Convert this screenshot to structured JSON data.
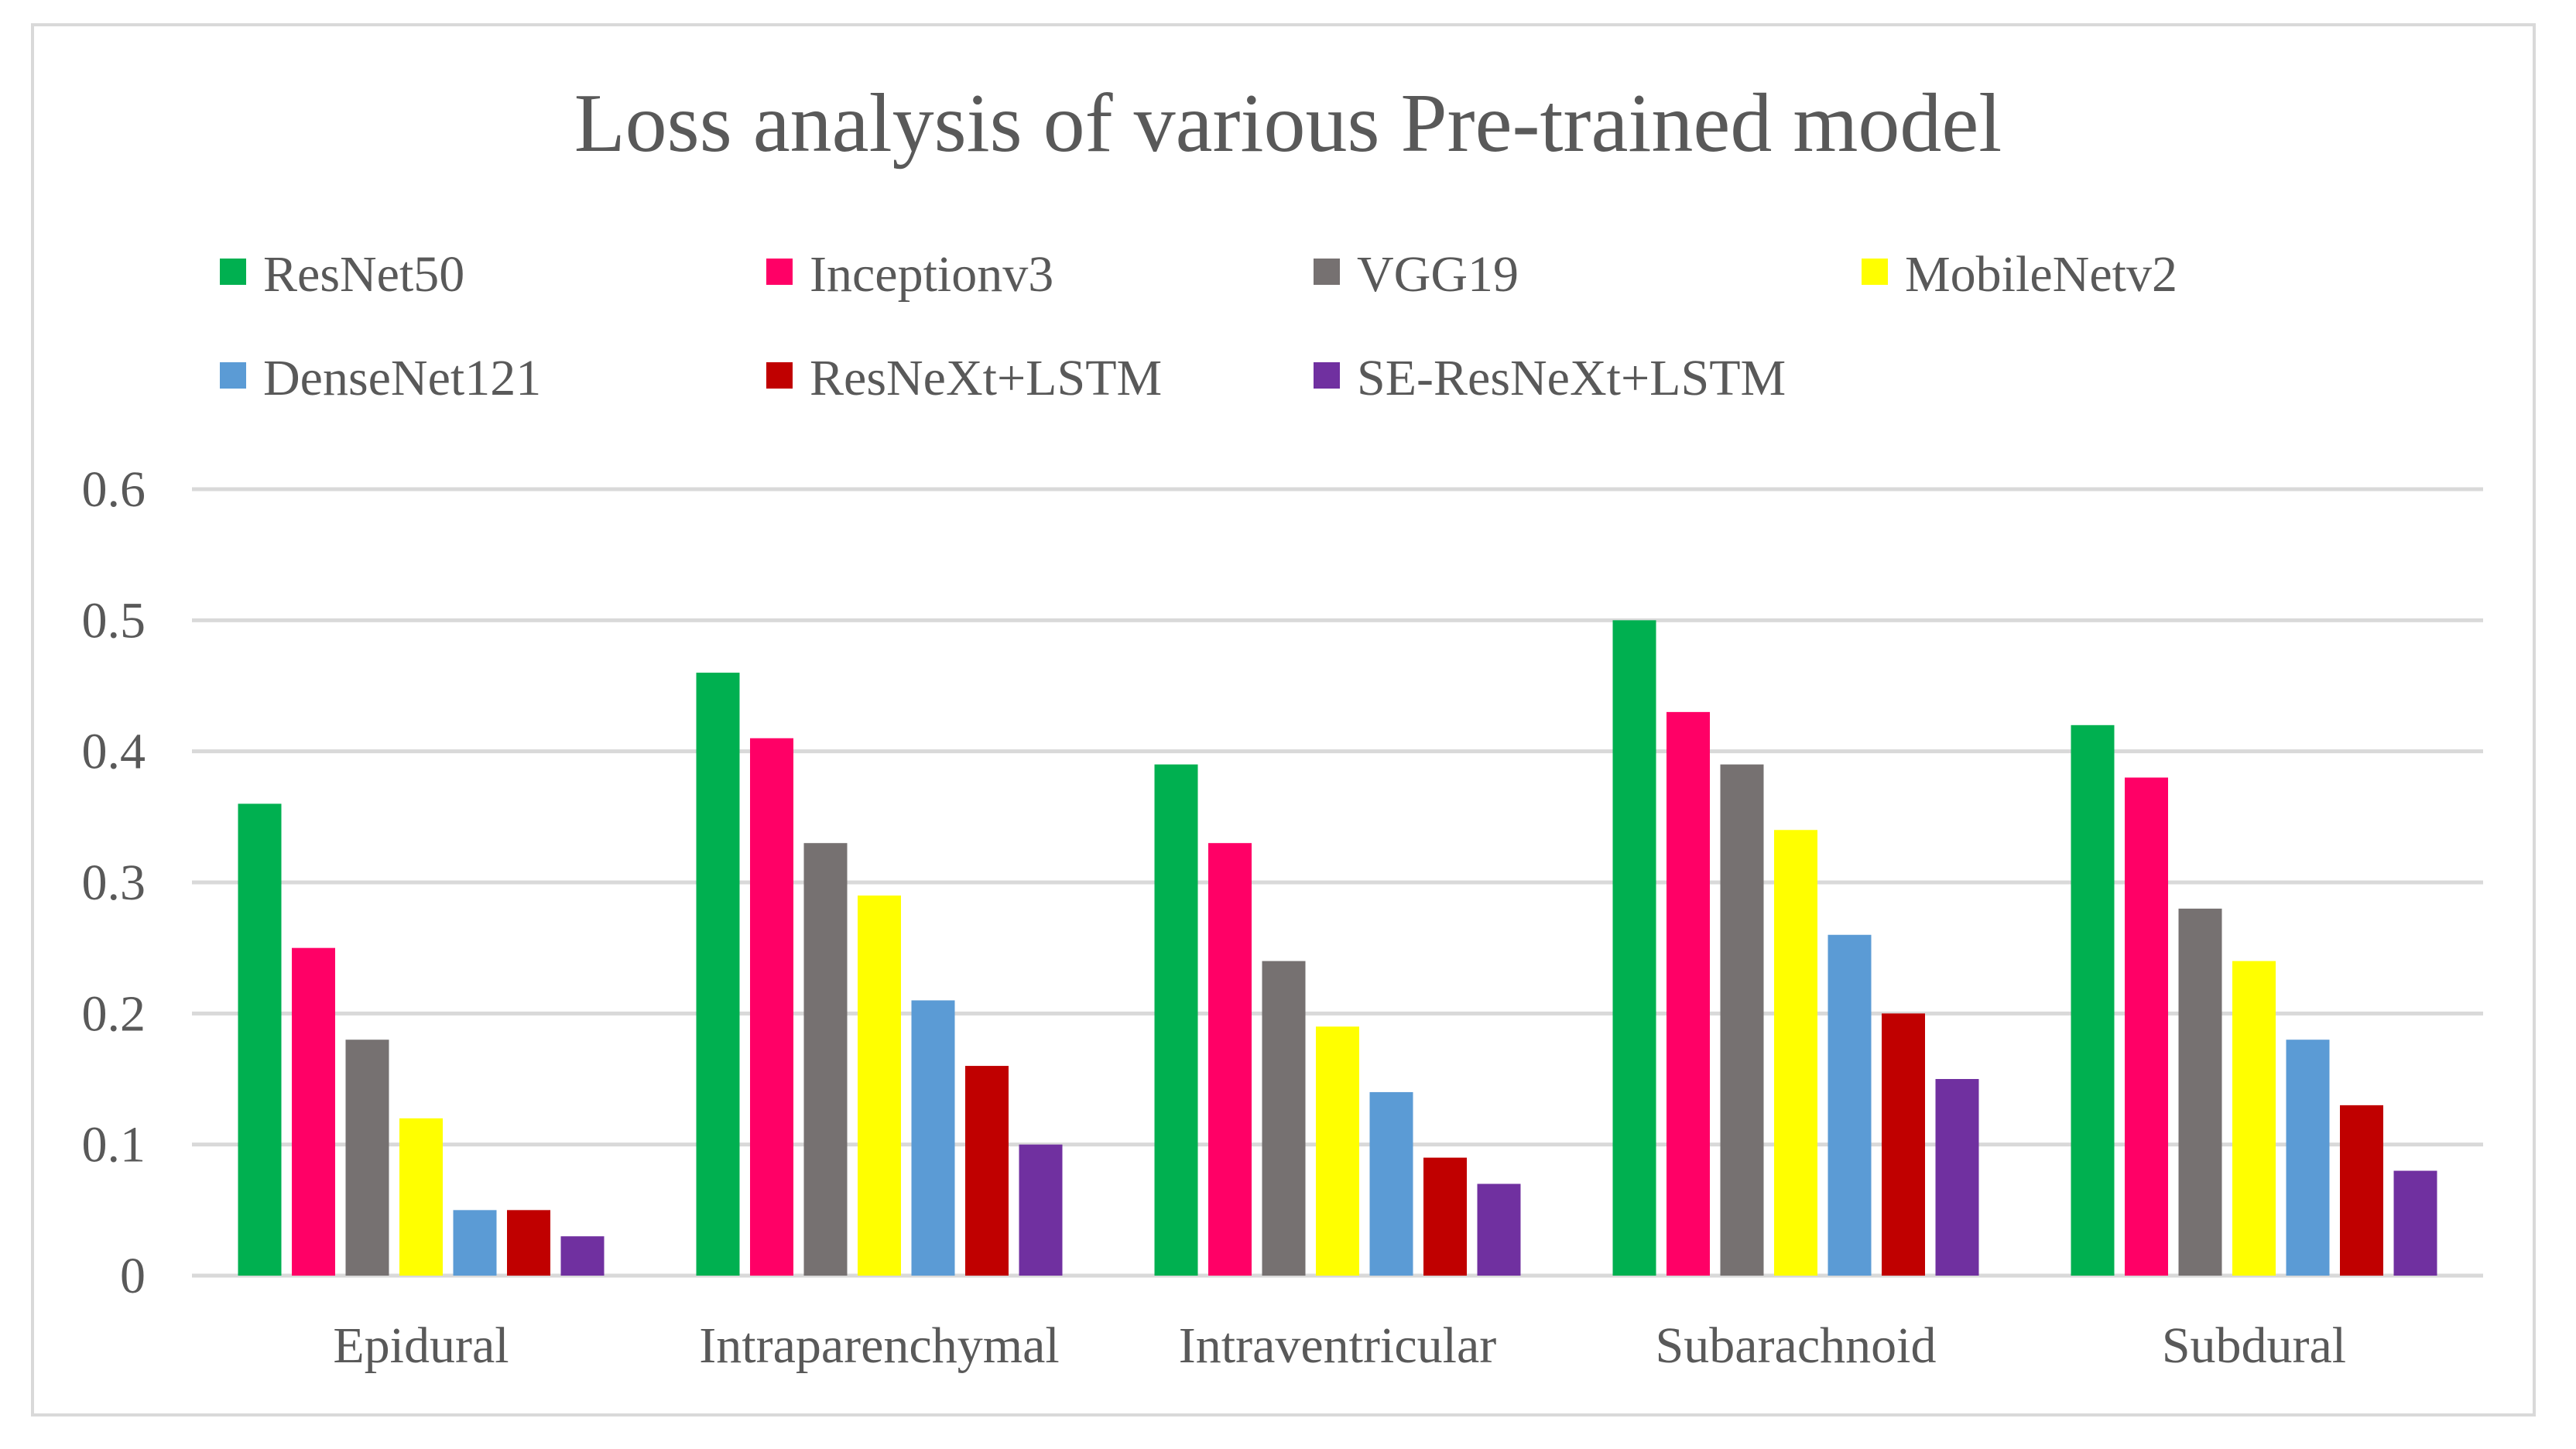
{
  "chart_data": {
    "type": "bar",
    "title": "Loss analysis of various Pre-trained model",
    "xlabel": "",
    "ylabel": "",
    "ylim": [
      0,
      0.6
    ],
    "yticks": [
      "0",
      "0.1",
      "0.2",
      "0.3",
      "0.4",
      "0.5",
      "0.6"
    ],
    "grid": true,
    "legend_position": "top",
    "categories": [
      "Epidural",
      "Intraparenchymal",
      "Intraventricular",
      "Subarachnoid",
      "Subdural"
    ],
    "series": [
      {
        "name": "ResNet50",
        "color": "#00b050",
        "values": [
          0.36,
          0.46,
          0.39,
          0.5,
          0.42
        ]
      },
      {
        "name": "Inceptionv3",
        "color": "#ff0066",
        "values": [
          0.25,
          0.41,
          0.33,
          0.43,
          0.38
        ]
      },
      {
        "name": "VGG19",
        "color": "#767171",
        "values": [
          0.18,
          0.33,
          0.24,
          0.39,
          0.28
        ]
      },
      {
        "name": "MobileNetv2",
        "color": "#ffff00",
        "values": [
          0.12,
          0.29,
          0.19,
          0.34,
          0.24
        ]
      },
      {
        "name": "DenseNet121",
        "color": "#5b9bd5",
        "values": [
          0.05,
          0.21,
          0.14,
          0.26,
          0.18
        ]
      },
      {
        "name": "ResNeXt+LSTM",
        "color": "#c00000",
        "values": [
          0.05,
          0.16,
          0.09,
          0.2,
          0.13
        ]
      },
      {
        "name": "SE-ResNeXt+LSTM",
        "color": "#7030a0",
        "values": [
          0.03,
          0.1,
          0.07,
          0.15,
          0.08
        ]
      }
    ]
  }
}
